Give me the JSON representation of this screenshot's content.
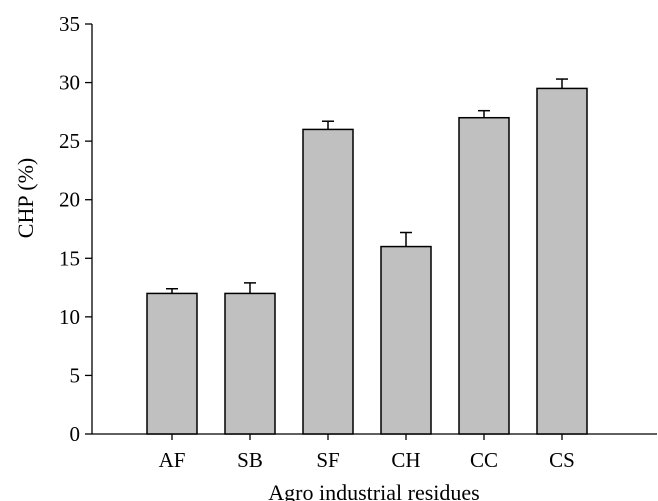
{
  "chart_data": {
    "type": "bar",
    "title": "",
    "xlabel": "Agro industrial residues",
    "ylabel": "CHP (%)",
    "categories": [
      "AF",
      "SB",
      "SF",
      "CH",
      "CC",
      "CS"
    ],
    "values": [
      12.0,
      12.0,
      26.0,
      16.0,
      27.0,
      29.5
    ],
    "errors": [
      0.4,
      0.9,
      0.7,
      1.2,
      0.6,
      0.8
    ],
    "ylim": [
      0,
      35
    ],
    "yticks": [
      0,
      5,
      10,
      15,
      20,
      25,
      30,
      35
    ],
    "grid": false,
    "legend": "none",
    "bar_color": "#c0c0c0",
    "edge_color": "#000000"
  }
}
